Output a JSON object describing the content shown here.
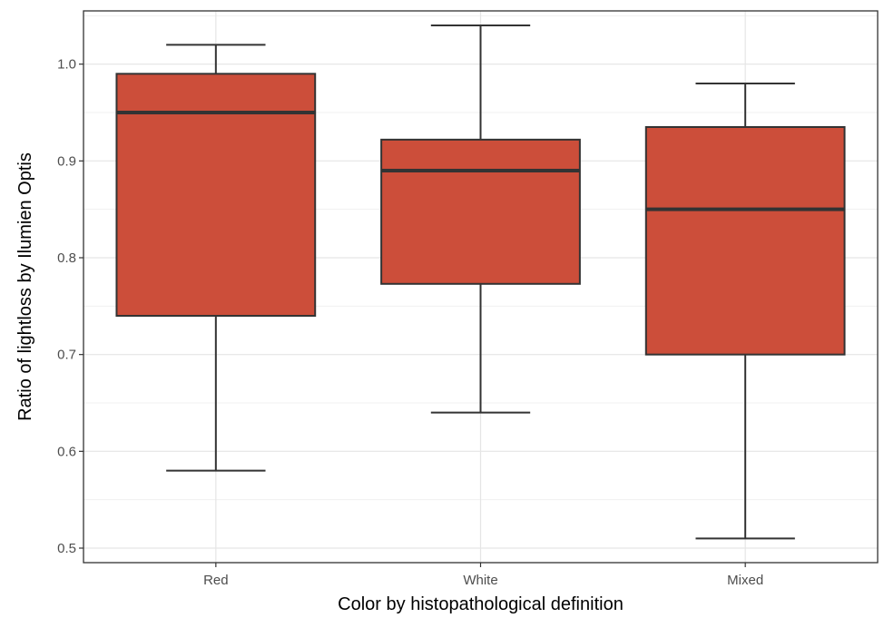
{
  "chart_data": {
    "type": "box",
    "title": "",
    "xlabel": "Color by histopathological definition",
    "ylabel": "Ratio of lightloss by Ilumien Optis",
    "ylim": [
      0.485,
      1.055
    ],
    "y_ticks": [
      "0.5",
      "0.6",
      "0.7",
      "0.8",
      "0.9",
      "1.0"
    ],
    "categories": [
      "Red",
      "White",
      "Mixed"
    ],
    "boxes": [
      {
        "category": "Red",
        "whisker_low": 0.58,
        "q1": 0.74,
        "median": 0.95,
        "q3": 0.99,
        "whisker_high": 1.02
      },
      {
        "category": "White",
        "whisker_low": 0.64,
        "q1": 0.773,
        "median": 0.89,
        "q3": 0.922,
        "whisker_high": 1.04
      },
      {
        "category": "Mixed",
        "whisker_low": 0.51,
        "q1": 0.7,
        "median": 0.85,
        "q3": 0.935,
        "whisker_high": 0.98
      }
    ],
    "fill_color": "#CC4E3A",
    "line_color": "#333333",
    "grid": true,
    "legend": "none"
  }
}
